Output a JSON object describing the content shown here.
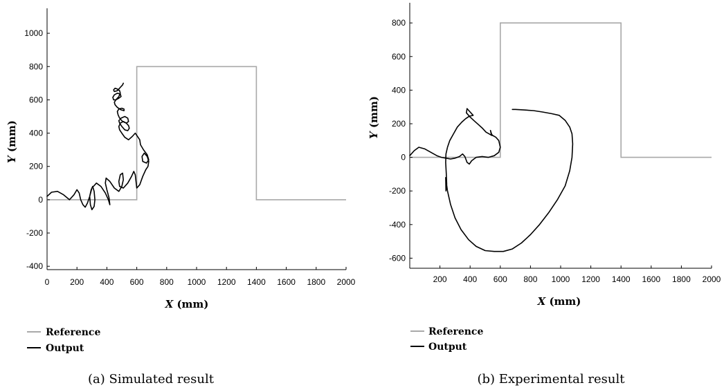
{
  "colors": {
    "reference": "#a8a8a8",
    "output": "#000000",
    "axis": "#000000"
  },
  "legend": {
    "reference_label": "Reference",
    "output_label": "Output"
  },
  "chart_data": [
    {
      "type": "line",
      "caption": "(a) Simulated result",
      "xlabel_var": "X",
      "xlabel_unit": " (mm)",
      "ylabel_var": "Y",
      "ylabel_unit": " (mm)",
      "xlim": [
        0,
        2000
      ],
      "ylim": [
        -420,
        1150
      ],
      "xticks": [
        0,
        200,
        400,
        600,
        800,
        1000,
        1200,
        1400,
        1600,
        1800,
        2000
      ],
      "yticks": [
        -400,
        -200,
        0,
        200,
        400,
        600,
        800,
        1000
      ],
      "grid": false,
      "legend_position": "below",
      "series": [
        {
          "name": "Reference",
          "x": [
            0,
            600,
            600,
            1400,
            1400,
            2000
          ],
          "y": [
            0,
            0,
            800,
            800,
            0,
            0
          ]
        },
        {
          "name": "Output",
          "x": [
            0,
            30,
            70,
            110,
            150,
            180,
            200,
            215,
            225,
            240,
            255,
            270,
            285,
            295,
            305,
            315,
            320,
            315,
            300,
            290,
            285,
            300,
            330,
            360,
            390,
            410,
            420,
            415,
            400,
            390,
            395,
            420,
            450,
            480,
            500,
            510,
            505,
            490,
            480,
            485,
            510,
            540,
            565,
            580,
            590,
            595,
            600,
            620,
            640,
            660,
            675,
            680,
            670,
            650,
            635,
            640,
            665,
            680,
            670,
            645,
            625,
            620,
            605,
            590,
            570,
            545,
            520,
            500,
            485,
            480,
            490,
            510,
            530,
            545,
            550,
            540,
            520,
            500,
            485,
            480,
            495,
            520,
            540,
            545,
            530,
            505,
            485,
            475,
            470,
            480,
            500,
            515,
            515,
            495,
            470,
            455,
            450,
            460,
            480,
            495,
            490,
            470,
            450,
            440,
            445,
            460,
            480,
            490,
            485,
            470,
            455,
            445,
            450,
            470,
            490,
            505,
            510
          ],
          "y": [
            20,
            45,
            50,
            30,
            0,
            30,
            60,
            40,
            0,
            -30,
            -45,
            -20,
            20,
            60,
            80,
            50,
            0,
            -40,
            -60,
            -30,
            20,
            70,
            100,
            80,
            40,
            0,
            -30,
            10,
            60,
            100,
            130,
            110,
            70,
            50,
            80,
            120,
            160,
            150,
            110,
            80,
            70,
            100,
            140,
            170,
            150,
            110,
            70,
            90,
            140,
            180,
            200,
            230,
            260,
            280,
            260,
            230,
            220,
            240,
            270,
            300,
            330,
            360,
            380,
            400,
            380,
            360,
            375,
            400,
            420,
            440,
            460,
            470,
            460,
            445,
            430,
            415,
            420,
            440,
            460,
            475,
            490,
            500,
            490,
            470,
            460,
            470,
            490,
            510,
            530,
            545,
            550,
            545,
            535,
            540,
            555,
            570,
            585,
            600,
            610,
            620,
            635,
            640,
            630,
            615,
            600,
            600,
            620,
            640,
            655,
            665,
            670,
            660,
            650,
            655,
            675,
            690,
            700
          ]
        }
      ]
    },
    {
      "type": "line",
      "caption": "(b) Experimental result",
      "xlabel_var": "X",
      "xlabel_unit": " (mm)",
      "ylabel_var": "Y",
      "ylabel_unit": " (mm)",
      "xlim": [
        0,
        2000
      ],
      "ylim": [
        -660,
        920
      ],
      "xticks": [
        200,
        400,
        600,
        800,
        1000,
        1200,
        1400,
        1600,
        1800,
        2000
      ],
      "yticks": [
        -600,
        -400,
        -200,
        0,
        200,
        400,
        600,
        800
      ],
      "grid": false,
      "legend_position": "below",
      "series": [
        {
          "name": "Reference",
          "x": [
            0,
            600,
            600,
            1400,
            1400,
            2000
          ],
          "y": [
            0,
            0,
            800,
            800,
            0,
            0
          ]
        },
        {
          "name": "Output",
          "x": [
            0,
            30,
            60,
            100,
            140,
            180,
            210,
            240,
            270,
            300,
            330,
            350,
            365,
            380,
            395,
            410,
            440,
            480,
            520,
            560,
            590,
            600,
            590,
            570,
            550,
            540,
            535,
            545,
            525,
            505,
            480,
            455,
            430,
            400,
            375,
            380,
            400,
            420,
            395,
            370,
            345,
            315,
            290,
            265,
            250,
            240,
            238,
            242,
            245,
            240,
            238,
            250,
            270,
            300,
            340,
            390,
            440,
            500,
            560,
            620,
            680,
            740,
            800,
            860,
            920,
            980,
            1030,
            1060,
            1075,
            1080,
            1075,
            1060,
            1030,
            990,
            940,
            880,
            820,
            760,
            700,
            680
          ],
          "y": [
            10,
            40,
            60,
            50,
            30,
            10,
            0,
            -5,
            -10,
            -5,
            5,
            20,
            5,
            -30,
            -40,
            -20,
            0,
            5,
            0,
            10,
            30,
            60,
            100,
            120,
            130,
            140,
            160,
            130,
            140,
            150,
            175,
            195,
            215,
            240,
            265,
            290,
            270,
            250,
            245,
            230,
            210,
            180,
            140,
            100,
            60,
            20,
            -30,
            -100,
            -160,
            -200,
            -120,
            -200,
            -280,
            -360,
            -430,
            -490,
            -530,
            -555,
            -560,
            -560,
            -545,
            -510,
            -460,
            -400,
            -330,
            -250,
            -170,
            -80,
            0,
            80,
            140,
            180,
            220,
            250,
            260,
            270,
            278,
            282,
            285,
            285
          ]
        }
      ]
    }
  ]
}
